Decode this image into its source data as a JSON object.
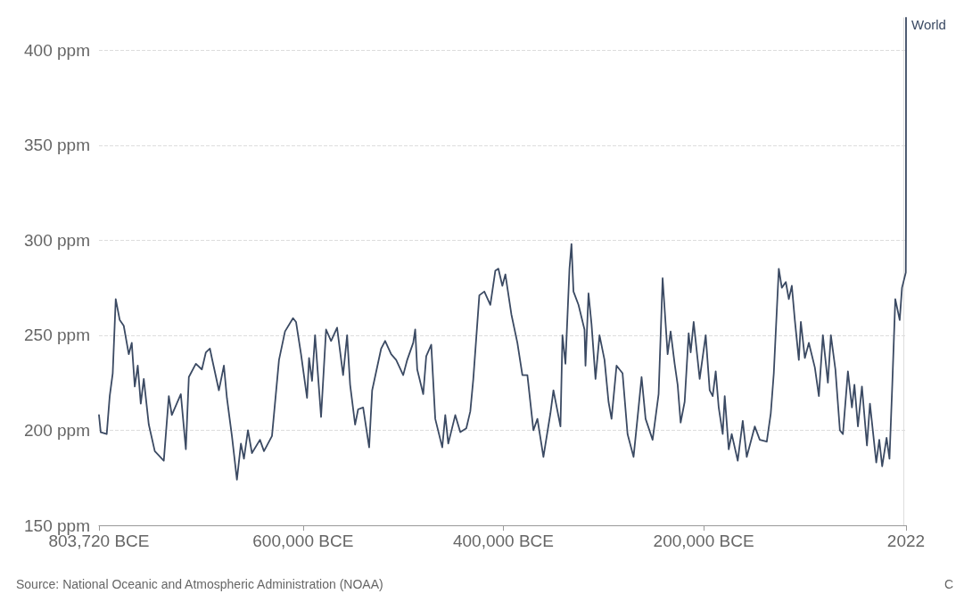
{
  "chart_data": {
    "type": "line",
    "xlim": [
      -803720,
      2022
    ],
    "ylim": [
      150,
      417
    ],
    "xticks": [
      {
        "value": -803720,
        "label": "803,720 BCE"
      },
      {
        "value": -600000,
        "label": "600,000 BCE"
      },
      {
        "value": -400000,
        "label": "400,000 BCE"
      },
      {
        "value": -200000,
        "label": "200,000 BCE"
      },
      {
        "value": 2022,
        "label": "2022"
      }
    ],
    "yticks": [
      {
        "value": 150,
        "label": "150 ppm"
      },
      {
        "value": 200,
        "label": "200 ppm"
      },
      {
        "value": 250,
        "label": "250 ppm"
      },
      {
        "value": 300,
        "label": "300 ppm"
      },
      {
        "value": 350,
        "label": "350 ppm"
      },
      {
        "value": 400,
        "label": "400 ppm"
      }
    ],
    "grid": "y",
    "legend": false,
    "marker": "none",
    "line_style": "solid",
    "annotations": [
      "Source: National Oceanic and Atmospheric Administration (NOAA)",
      "C"
    ],
    "series": [
      {
        "name": "World",
        "color": "#3b4a63",
        "x": [
          -803720,
          -802000,
          -796000,
          -793000,
          -790000,
          -787000,
          -783000,
          -779000,
          -774000,
          -771000,
          -768000,
          -765000,
          -762000,
          -759000,
          -754000,
          -748000,
          -739000,
          -734000,
          -731000,
          -722000,
          -717000,
          -714000,
          -707000,
          -701000,
          -697000,
          -693000,
          -691000,
          -684000,
          -679000,
          -676000,
          -671000,
          -666000,
          -662000,
          -659000,
          -655000,
          -651000,
          -643000,
          -639000,
          -631000,
          -624000,
          -618000,
          -610000,
          -607000,
          -602000,
          -596000,
          -594000,
          -591000,
          -588000,
          -582000,
          -577000,
          -572000,
          -566000,
          -560000,
          -556000,
          -553000,
          -548000,
          -545000,
          -540000,
          -534000,
          -531000,
          -522000,
          -518000,
          -512000,
          -507000,
          -500000,
          -496000,
          -490000,
          -488000,
          -486000,
          -480000,
          -477000,
          -472000,
          -468000,
          -461000,
          -458000,
          -455000,
          -448000,
          -443000,
          -437000,
          -433000,
          -430000,
          -424000,
          -419000,
          -413000,
          -408000,
          -405000,
          -401000,
          -398000,
          -392000,
          -386000,
          -381000,
          -376000,
          -370000,
          -366000,
          -360000,
          -353000,
          -350000,
          -343000,
          -341000,
          -338000,
          -334000,
          -332000,
          -330000,
          -325000,
          -319000,
          -318000,
          -315000,
          -312000,
          -308000,
          -304000,
          -299000,
          -295000,
          -292000,
          -287000,
          -281000,
          -276000,
          -270000,
          -265000,
          -262000,
          -258000,
          -251000,
          -245000,
          -241000,
          -236000,
          -233000,
          -229000,
          -226000,
          -223000,
          -219000,
          -215000,
          -213000,
          -210000,
          -204000,
          -198000,
          -194000,
          -191000,
          -188000,
          -185000,
          -181000,
          -179000,
          -175000,
          -172000,
          -166000,
          -161000,
          -157000,
          -149000,
          -144000,
          -137000,
          -133000,
          -130000,
          -125000,
          -122000,
          -118000,
          -115000,
          -112000,
          -109000,
          -105000,
          -103000,
          -99000,
          -95000,
          -89000,
          -85000,
          -81000,
          -76000,
          -73000,
          -68500,
          -64000,
          -61000,
          -56000,
          -52000,
          -49500,
          -46000,
          -42000,
          -37000,
          -34000,
          -27700,
          -24700,
          -21800,
          -17400,
          -14500,
          -11700,
          -8700,
          -4300,
          -2000,
          1800,
          1950,
          2000,
          2022
        ],
        "values": [
          208,
          199,
          198,
          218,
          230,
          269,
          258,
          255,
          240,
          246,
          223,
          234,
          214,
          227,
          203,
          189,
          184,
          218,
          208,
          219,
          190,
          228,
          235,
          232,
          241,
          243,
          238,
          221,
          234,
          217,
          197,
          174,
          193,
          185,
          200,
          188,
          195,
          189,
          197,
          237,
          252,
          259,
          257,
          240,
          217,
          238,
          226,
          250,
          207,
          253,
          247,
          254,
          229,
          250,
          224,
          203,
          211,
          212,
          191,
          221,
          243,
          247,
          240,
          237,
          229,
          237,
          246,
          253,
          232,
          219,
          239,
          245,
          206,
          191,
          208,
          193,
          208,
          199,
          201,
          210,
          227,
          271,
          273,
          266,
          284,
          285,
          276,
          282,
          261,
          246,
          229,
          229,
          200,
          206,
          186,
          209,
          221,
          202,
          250,
          235,
          285,
          298,
          273,
          266,
          253,
          234,
          272,
          256,
          227,
          250,
          237,
          215,
          206,
          234,
          230,
          198,
          186,
          212,
          228,
          206,
          195,
          219,
          280,
          240,
          252,
          235,
          224,
          204,
          215,
          251,
          241,
          257,
          227,
          250,
          221,
          218,
          231,
          212,
          198,
          218,
          190,
          198,
          184,
          205,
          186,
          202,
          195,
          194,
          209,
          230,
          285,
          275,
          278,
          269,
          276,
          258,
          237,
          257,
          238,
          246,
          233,
          218,
          250,
          225,
          250,
          232,
          200,
          198,
          231,
          212,
          224,
          202,
          223,
          192,
          214,
          183,
          195,
          181,
          196,
          185,
          224,
          269,
          258,
          275,
          283,
          311,
          369,
          417
        ]
      }
    ]
  }
}
